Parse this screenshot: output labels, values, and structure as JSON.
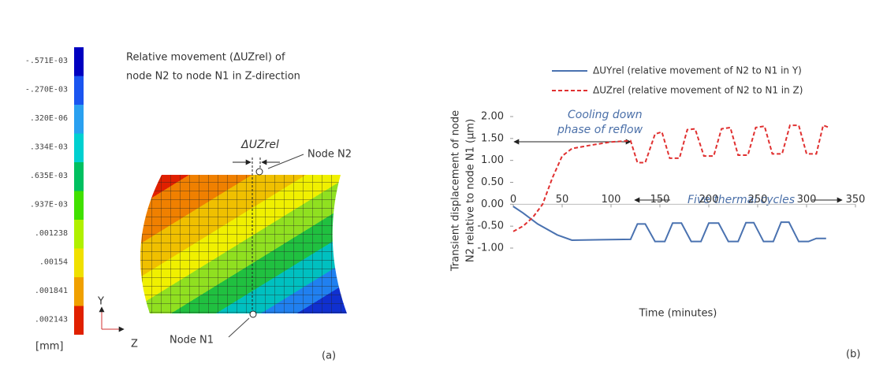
{
  "contour": {
    "title": [
      "Relative movement (ΔUZrel) of",
      "node N2 to node N1 in Z-direction"
    ],
    "unit": "[mm]",
    "colorbar_labels": [
      "-.571E-03",
      "-.270E-03",
      ".320E-06",
      ".334E-03",
      ".635E-03",
      ".937E-03",
      ".001238",
      ".00154",
      ".001841",
      ".002143"
    ],
    "delta_label": "ΔUZrel",
    "node2": "Node N2",
    "node1": "Node N1",
    "y_axis": "Y",
    "z_axis": "Z",
    "panel_label": "(a)"
  },
  "chart_data": {
    "type": "line",
    "ylabel": [
      "Transient displacement of node",
      "N2 relative to node N1 (µm)"
    ],
    "xlabel": "Time (minutes)",
    "xlim": [
      0,
      350
    ],
    "xticks": [
      0,
      50,
      100,
      150,
      200,
      250,
      300,
      350
    ],
    "ylim": [
      -1,
      2
    ],
    "yticks": [
      {
        "value": -1,
        "label": "-1.00"
      },
      {
        "value": -0.5,
        "label": "-0.50"
      },
      {
        "value": 0,
        "label": "0.00"
      },
      {
        "value": 0.5,
        "label": "0.50"
      },
      {
        "value": 1,
        "label": "1.00"
      },
      {
        "value": 1.5,
        "label": "1.50"
      },
      {
        "value": 2,
        "label": "2.00"
      }
    ],
    "series": [
      {
        "name": "ΔUYrel (relative movement of N2 to N1 in Y)",
        "color": "#4a72b0",
        "dash": false,
        "x": [
          0,
          10,
          25,
          45,
          60,
          90,
          120,
          127,
          135,
          145,
          155,
          163,
          172,
          182,
          192,
          200,
          210,
          220,
          230,
          238,
          246,
          256,
          266,
          274,
          282,
          292,
          302,
          310,
          320
        ],
        "values": [
          -0.05,
          -0.2,
          -0.45,
          -0.7,
          -0.82,
          -0.81,
          -0.8,
          -0.45,
          -0.45,
          -0.85,
          -0.85,
          -0.43,
          -0.43,
          -0.85,
          -0.85,
          -0.43,
          -0.43,
          -0.85,
          -0.85,
          -0.42,
          -0.42,
          -0.85,
          -0.85,
          -0.41,
          -0.41,
          -0.85,
          -0.85,
          -0.78,
          -0.78
        ]
      },
      {
        "name": "ΔUZrel (relative movement of N2 to N1 in Z)",
        "color": "#e03030",
        "dash": true,
        "x": [
          0,
          10,
          20,
          30,
          40,
          50,
          60,
          80,
          100,
          120,
          127,
          135,
          145,
          152,
          160,
          170,
          178,
          186,
          195,
          205,
          213,
          222,
          230,
          240,
          248,
          257,
          265,
          275,
          283,
          292,
          300,
          310,
          317,
          323
        ],
        "values": [
          -0.62,
          -0.5,
          -0.3,
          0.0,
          0.6,
          1.1,
          1.27,
          1.35,
          1.42,
          1.45,
          0.95,
          0.95,
          1.6,
          1.65,
          1.05,
          1.05,
          1.7,
          1.72,
          1.1,
          1.1,
          1.72,
          1.75,
          1.12,
          1.12,
          1.75,
          1.78,
          1.15,
          1.15,
          1.8,
          1.8,
          1.15,
          1.15,
          1.8,
          1.75
        ]
      }
    ],
    "annotations": {
      "cooling": [
        "Cooling down",
        "phase of reflow"
      ],
      "cycles": "Five thermal cycles"
    },
    "panel_label": "(b)"
  }
}
